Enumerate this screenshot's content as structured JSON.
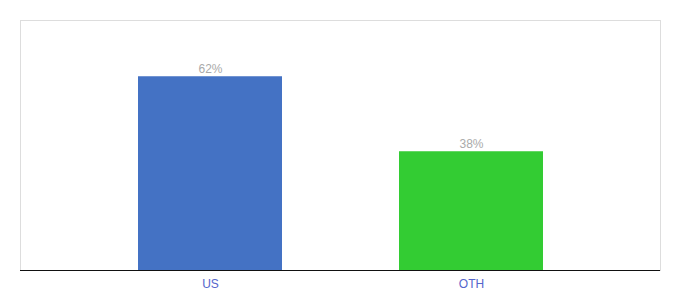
{
  "chart_data": {
    "type": "bar",
    "categories": [
      "US",
      "OTH"
    ],
    "values": [
      62,
      38
    ],
    "value_labels": [
      "62%",
      "38%"
    ],
    "colors": [
      "#4472c4",
      "#33cc33"
    ],
    "ylim": [
      0,
      80
    ],
    "data_labels": true,
    "tick_labels": "x"
  }
}
